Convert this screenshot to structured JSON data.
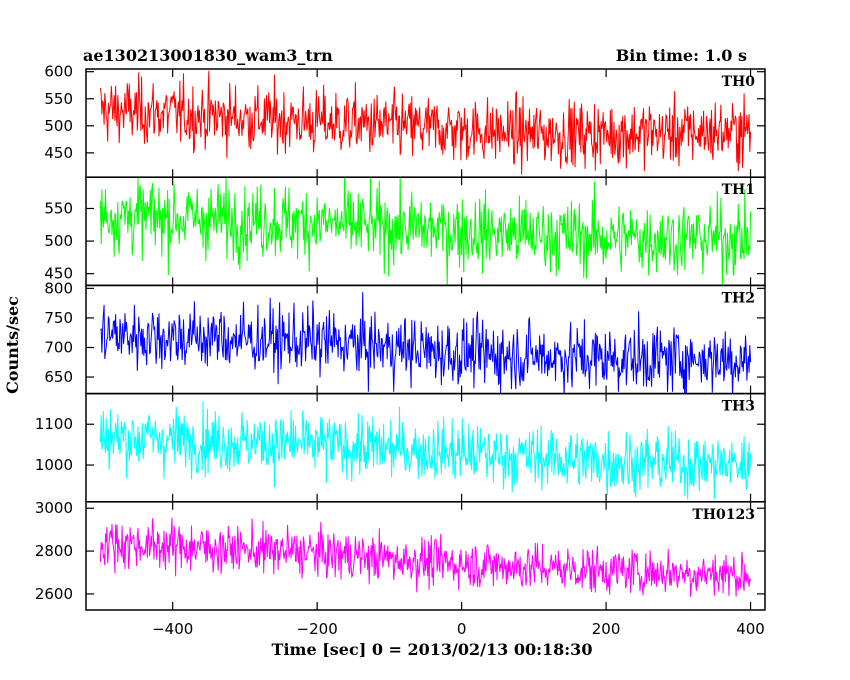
{
  "header": {
    "title": "ae130213001830_wam3_trn",
    "bin_time": "Bin time: 1.0 s"
  },
  "chart_data": {
    "type": "line",
    "title": "ae130213001830_wam3_trn",
    "subtitle": "Bin time: 1.0 s",
    "xlabel": "Time [sec] 0 = 2013/02/13 00:18:30",
    "ylabel": "Counts/sec",
    "xlim": [
      -520,
      420
    ],
    "x_ticks": [
      -400,
      -200,
      0,
      200,
      400
    ],
    "x_tick_labels": [
      "−400",
      "−200",
      "0",
      "200",
      "400"
    ],
    "x_range": [
      -500,
      400
    ],
    "bin_seconds": 1.0,
    "grid": false,
    "legend": "none",
    "panels": [
      {
        "name": "TH0",
        "color": "#ff0000",
        "ylim": [
          405,
          605
        ],
        "y_ticks": [
          450,
          500,
          550,
          600
        ],
        "trend": {
          "x": [
            -500,
            -300,
            -100,
            100,
            200,
            400
          ],
          "y": [
            530,
            515,
            500,
            485,
            485,
            490
          ]
        },
        "noise_sd": 30
      },
      {
        "name": "TH1",
        "color": "#00ff00",
        "ylim": [
          432,
          598
        ],
        "y_ticks": [
          450,
          500,
          550
        ],
        "trend": {
          "x": [
            -500,
            -200,
            0,
            200,
            400
          ],
          "y": [
            540,
            528,
            515,
            505,
            505
          ]
        },
        "noise_sd": 28
      },
      {
        "name": "TH2",
        "color": "#0000ff",
        "ylim": [
          622,
          805
        ],
        "y_ticks": [
          650,
          700,
          750,
          800
        ],
        "trend": {
          "x": [
            -500,
            -200,
            0,
            200,
            400
          ],
          "y": [
            722,
            710,
            690,
            682,
            680
          ]
        },
        "noise_sd": 28
      },
      {
        "name": "TH3",
        "color": "#00ffff",
        "ylim": [
          910,
          1175
        ],
        "y_ticks": [
          1000,
          1100
        ],
        "trend": {
          "x": [
            -500,
            -200,
            0,
            200,
            400
          ],
          "y": [
            1070,
            1050,
            1030,
            1010,
            1000
          ]
        },
        "noise_sd": 38
      },
      {
        "name": "TH0123",
        "color": "#ff00ff",
        "ylim": [
          2525,
          3030
        ],
        "y_ticks": [
          2600,
          2800,
          3000
        ],
        "trend": {
          "x": [
            -500,
            -200,
            0,
            200,
            400
          ],
          "y": [
            2840,
            2790,
            2740,
            2710,
            2690
          ]
        },
        "noise_sd": 55
      }
    ]
  }
}
